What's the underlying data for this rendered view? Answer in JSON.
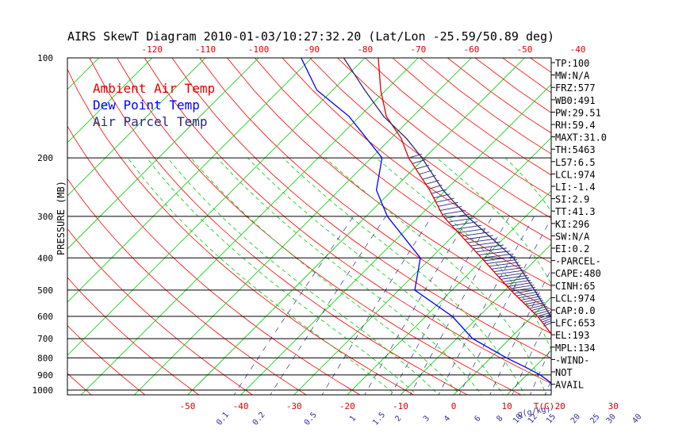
{
  "chart_data": {
    "type": "line",
    "title": "AIRS SkewT Diagram 2010-01-03/10:27:32.20 (Lat/Lon -25.59/50.89 deg)",
    "ylabel": "PRESSURE (MB)",
    "xlabel_unit": "T(C)",
    "mixing_ratio_unit": "q(g/kg)",
    "y_scale": "log",
    "ylim": [
      1050,
      100
    ],
    "pressure_ticks": [
      100,
      200,
      300,
      400,
      500,
      600,
      700,
      800,
      900,
      1000
    ],
    "bottom_temp_ticks": [
      -50,
      -40,
      -30,
      -20,
      -10,
      0,
      10,
      20,
      30
    ],
    "top_temp_ticks": [
      -120,
      -110,
      -100,
      -90,
      -80,
      -70,
      -60,
      -50,
      -40
    ],
    "mixing_ratio_ticks": [
      "0.1",
      "0.2",
      "0.5",
      "1",
      "1.5",
      "2",
      "3",
      "4",
      "6",
      "8",
      "10",
      "12",
      "15",
      "20",
      "25",
      "30",
      "40"
    ],
    "legend": [
      {
        "label": "Ambient Air Temp",
        "color": "#e00000"
      },
      {
        "label": "Dew Point Temp",
        "color": "#0000ff"
      },
      {
        "label": "Air Parcel Temp",
        "color": "#2b2b7a"
      }
    ],
    "series": [
      {
        "name": "Ambient Air Temp",
        "color": "#e00000",
        "points": [
          [
            1014,
            25.0
          ],
          [
            1000,
            23.5
          ],
          [
            950,
            20.5
          ],
          [
            900,
            18.0
          ],
          [
            850,
            15.5
          ],
          [
            800,
            13.5
          ],
          [
            750,
            11.0
          ],
          [
            700,
            8.5
          ],
          [
            600,
            1.0
          ],
          [
            500,
            -9.0
          ],
          [
            400,
            -20.5
          ],
          [
            300,
            -35.5
          ],
          [
            250,
            -43.0
          ],
          [
            200,
            -53.0
          ],
          [
            175,
            -58.0
          ],
          [
            150,
            -65.0
          ],
          [
            125,
            -71.0
          ],
          [
            100,
            -77.5
          ]
        ]
      },
      {
        "name": "Dew Point Temp",
        "color": "#0000ff",
        "points": [
          [
            1014,
            19.0
          ],
          [
            1000,
            17.5
          ],
          [
            950,
            16.0
          ],
          [
            900,
            12.5
          ],
          [
            850,
            8.0
          ],
          [
            800,
            3.0
          ],
          [
            700,
            -7.0
          ],
          [
            600,
            -15.0
          ],
          [
            500,
            -27.0
          ],
          [
            400,
            -32.0
          ],
          [
            300,
            -46.0
          ],
          [
            250,
            -53.0
          ],
          [
            200,
            -58.0
          ],
          [
            150,
            -72.0
          ],
          [
            125,
            -83.0
          ],
          [
            100,
            -92.0
          ]
        ]
      },
      {
        "name": "Air Parcel Temp",
        "color": "#2b2b7a",
        "points": [
          [
            1014,
            25.0
          ],
          [
            974,
            22.0
          ],
          [
            900,
            19.0
          ],
          [
            800,
            15.5
          ],
          [
            700,
            10.0
          ],
          [
            653,
            6.5
          ],
          [
            600,
            3.5
          ],
          [
            500,
            -4.5
          ],
          [
            400,
            -14.5
          ],
          [
            300,
            -31.0
          ],
          [
            250,
            -40.5
          ],
          [
            200,
            -50.5
          ],
          [
            175,
            -57.0
          ],
          [
            150,
            -65.5
          ],
          [
            125,
            -74.0
          ],
          [
            100,
            -84.0
          ]
        ]
      }
    ],
    "indices": [
      "TP:100",
      "MW:N/A",
      "FRZ:577",
      "WB0:491",
      "PW:29.51",
      "RH:59.4",
      "MAXT:31.0",
      "TH:5463",
      "L57:6.5",
      "LCL:974",
      "LI:-1.4",
      "SI:2.9",
      "TT:41.3",
      "KI:296",
      "SW:N/A",
      "EI:0.2",
      "-PARCEL-",
      "CAPE:480",
      "CINH:65",
      "LCL:974",
      "CAP:0.0",
      "LFC:653",
      "EL:193",
      "MPL:134",
      "-WIND-",
      "NOT",
      "AVAIL"
    ],
    "colors": {
      "dry_adiabat": "#ff0000",
      "moist_adiabat": "#00cc00",
      "isotherm": "#00cc00",
      "mixing_ratio": "#3030a0",
      "isobar": "#000000"
    }
  }
}
